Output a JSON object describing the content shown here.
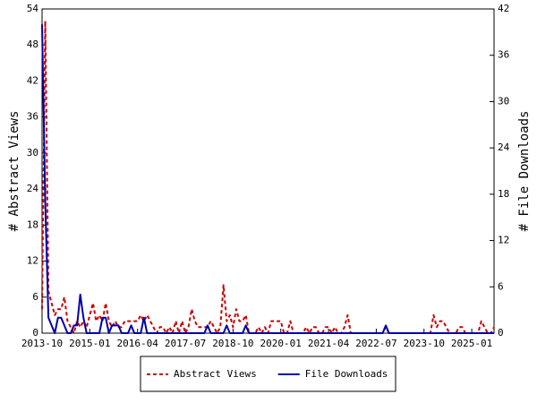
{
  "chart_data": {
    "type": "line",
    "x": [
      "2013-10",
      "2013-11",
      "2013-12",
      "2014-01",
      "2014-02",
      "2014-03",
      "2014-04",
      "2014-05",
      "2014-06",
      "2014-07",
      "2014-08",
      "2014-09",
      "2014-10",
      "2014-11",
      "2014-12",
      "2015-01",
      "2015-02",
      "2015-03",
      "2015-04",
      "2015-05",
      "2015-06",
      "2015-07",
      "2015-08",
      "2015-09",
      "2015-10",
      "2015-11",
      "2015-12",
      "2016-01",
      "2016-02",
      "2016-03",
      "2016-04",
      "2016-05",
      "2016-06",
      "2016-07",
      "2016-08",
      "2016-09",
      "2016-10",
      "2016-11",
      "2016-12",
      "2017-01",
      "2017-02",
      "2017-03",
      "2017-04",
      "2017-05",
      "2017-06",
      "2017-07",
      "2017-08",
      "2017-09",
      "2017-10",
      "2017-11",
      "2017-12",
      "2018-01",
      "2018-02",
      "2018-03",
      "2018-04",
      "2018-05",
      "2018-06",
      "2018-07",
      "2018-08",
      "2018-09",
      "2018-10",
      "2018-11",
      "2018-12",
      "2019-01",
      "2019-02",
      "2019-03",
      "2019-04",
      "2019-05",
      "2019-06",
      "2019-07",
      "2019-08",
      "2019-09",
      "2019-10",
      "2019-11",
      "2019-12",
      "2020-01",
      "2020-02",
      "2020-03",
      "2020-04",
      "2020-05",
      "2020-06",
      "2020-07",
      "2020-08",
      "2020-09",
      "2020-10",
      "2020-11",
      "2020-12",
      "2021-01",
      "2021-02",
      "2021-03",
      "2021-04",
      "2021-05",
      "2021-06",
      "2021-07",
      "2021-08",
      "2021-09",
      "2021-10",
      "2021-11",
      "2021-12",
      "2022-01",
      "2022-02",
      "2022-03",
      "2022-04",
      "2022-05",
      "2022-06",
      "2022-07",
      "2022-08",
      "2022-09",
      "2022-10",
      "2022-11",
      "2022-12",
      "2023-01",
      "2023-02",
      "2023-03",
      "2023-04",
      "2023-05",
      "2023-06",
      "2023-07",
      "2023-08",
      "2023-09",
      "2023-10",
      "2023-11",
      "2023-12",
      "2024-01",
      "2024-02",
      "2024-03",
      "2024-04",
      "2024-05",
      "2024-06",
      "2024-07",
      "2024-08",
      "2024-09",
      "2024-10",
      "2024-11",
      "2024-12",
      "2025-01",
      "2025-02",
      "2025-03",
      "2025-04",
      "2025-05",
      "2025-06",
      "2025-07",
      "2025-08"
    ],
    "xticks": [
      "2013-10",
      "2015-01",
      "2016-04",
      "2017-07",
      "2018-10",
      "2020-01",
      "2021-04",
      "2022-07",
      "2023-10",
      "2025-01"
    ],
    "ylabel": "# Abstract Views",
    "y2label": "# File Downloads",
    "ylim": [
      0,
      54
    ],
    "yticks": [
      0,
      6,
      12,
      18,
      24,
      30,
      36,
      42,
      48,
      54
    ],
    "y2lim": [
      0,
      42
    ],
    "y2ticks": [
      0,
      6,
      12,
      18,
      24,
      30,
      36,
      42
    ],
    "series": [
      {
        "name": "Abstract Views",
        "color": "#cc0000",
        "linestyle": "dashed",
        "axis": "y",
        "values": [
          4,
          52,
          7,
          5,
          3,
          4,
          4,
          6,
          2,
          1,
          0,
          2,
          1,
          2,
          1,
          3,
          5,
          2,
          3,
          2,
          5,
          2,
          1,
          2,
          1,
          1,
          2,
          2,
          2,
          2,
          2,
          3,
          2,
          3,
          2,
          1,
          0,
          1,
          1,
          0,
          1,
          0,
          2,
          0,
          2,
          0,
          1,
          4,
          2,
          1,
          1,
          1,
          1,
          2,
          1,
          0,
          1,
          8,
          2,
          3,
          1,
          4,
          2,
          2,
          3,
          0,
          0,
          0,
          1,
          0,
          1,
          0,
          2,
          2,
          2,
          2,
          0,
          0,
          2,
          0,
          0,
          0,
          0,
          1,
          0,
          1,
          1,
          0,
          0,
          1,
          1,
          0,
          1,
          0,
          0,
          1,
          3,
          0,
          0,
          0,
          0,
          0,
          0,
          0,
          0,
          0,
          0,
          0,
          1,
          0,
          0,
          0,
          0,
          0,
          0,
          0,
          0,
          0,
          0,
          0,
          0,
          0,
          0,
          3,
          1,
          2,
          2,
          1,
          0,
          0,
          0,
          1,
          1,
          0,
          0,
          0,
          0,
          0,
          2,
          1,
          0,
          0,
          1
        ]
      },
      {
        "name": "File Downloads",
        "color": "#0000aa",
        "linestyle": "solid",
        "axis": "y2",
        "values": [
          40,
          17,
          2,
          1,
          0,
          2,
          2,
          1,
          0,
          0,
          1,
          1,
          5,
          2,
          0,
          0,
          0,
          0,
          0,
          2,
          2,
          0,
          1,
          1,
          1,
          0,
          0,
          0,
          1,
          0,
          0,
          0,
          2,
          0,
          0,
          0,
          0,
          0,
          0,
          0,
          0,
          0,
          0,
          0,
          0,
          0,
          0,
          0,
          0,
          0,
          0,
          0,
          1,
          0,
          0,
          0,
          0,
          0,
          1,
          0,
          0,
          0,
          0,
          0,
          1,
          0,
          0,
          0,
          0,
          0,
          0,
          0,
          0,
          0,
          0,
          0,
          0,
          0,
          0,
          0,
          0,
          0,
          0,
          0,
          0,
          0,
          0,
          0,
          0,
          0,
          0,
          0,
          0,
          0,
          0,
          0,
          0,
          0,
          0,
          0,
          0,
          0,
          0,
          0,
          0,
          0,
          0,
          0,
          1,
          0,
          0,
          0,
          0,
          0,
          0,
          0,
          0,
          0,
          0,
          0,
          0,
          0,
          0,
          0,
          0,
          0,
          0,
          0,
          0,
          0,
          0,
          0,
          0,
          0,
          0,
          0,
          0,
          0,
          0,
          0,
          0,
          0,
          0
        ]
      }
    ]
  }
}
